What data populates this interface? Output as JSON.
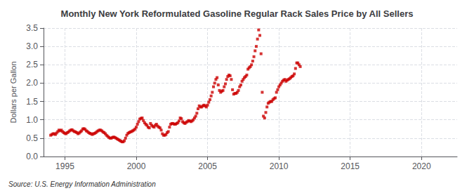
{
  "chart_data": {
    "type": "scatter",
    "title": "Monthly New York Reformulated Gasoline Regular Rack Sales Price by All Sellers",
    "ylabel": "Dollars per Gallon",
    "source": "Source: U.S. Energy Information Administration",
    "color": "#cc0000",
    "marker": "square",
    "grid": true,
    "xlim": [
      1993.5,
      2022.5
    ],
    "ylim": [
      0.0,
      3.5
    ],
    "xticks": [
      1995,
      2000,
      2005,
      2010,
      2015,
      2020
    ],
    "yticks": [
      {
        "value": 0.0,
        "label": "0.0"
      },
      0.5,
      {
        "value": 1.0,
        "label": "1.0"
      },
      1.5,
      {
        "value": 2.0,
        "label": "2.0"
      },
      2.5,
      {
        "value": 3.0,
        "label": "3.0"
      },
      3.5
    ],
    "x": [
      1994.0,
      1994.083,
      1994.167,
      1994.25,
      1994.333,
      1994.417,
      1994.5,
      1994.583,
      1994.667,
      1994.75,
      1994.833,
      1994.917,
      1995.0,
      1995.083,
      1995.167,
      1995.25,
      1995.333,
      1995.417,
      1995.5,
      1995.583,
      1995.667,
      1995.75,
      1995.833,
      1995.917,
      1996.0,
      1996.083,
      1996.167,
      1996.25,
      1996.333,
      1996.417,
      1996.5,
      1996.583,
      1996.667,
      1996.75,
      1996.833,
      1996.917,
      1997.0,
      1997.083,
      1997.167,
      1997.25,
      1997.333,
      1997.417,
      1997.5,
      1997.583,
      1997.667,
      1997.75,
      1997.833,
      1997.917,
      1998.0,
      1998.083,
      1998.167,
      1998.25,
      1998.333,
      1998.417,
      1998.5,
      1998.583,
      1998.667,
      1998.75,
      1998.833,
      1998.917,
      1999.0,
      1999.083,
      1999.167,
      1999.25,
      1999.333,
      1999.417,
      1999.5,
      1999.583,
      1999.667,
      1999.75,
      1999.833,
      1999.917,
      2000.0,
      2000.083,
      2000.167,
      2000.25,
      2000.333,
      2000.417,
      2000.5,
      2000.583,
      2000.667,
      2000.75,
      2000.833,
      2000.917,
      2001.0,
      2001.083,
      2001.167,
      2001.25,
      2001.333,
      2001.417,
      2001.5,
      2001.583,
      2001.667,
      2001.75,
      2001.833,
      2001.917,
      2002.0,
      2002.083,
      2002.167,
      2002.25,
      2002.333,
      2002.417,
      2002.5,
      2002.583,
      2002.667,
      2002.75,
      2002.833,
      2002.917,
      2003.0,
      2003.083,
      2003.167,
      2003.25,
      2003.333,
      2003.417,
      2003.5,
      2003.583,
      2003.667,
      2003.75,
      2003.833,
      2003.917,
      2004.0,
      2004.083,
      2004.167,
      2004.25,
      2004.333,
      2004.417,
      2004.5,
      2004.583,
      2004.667,
      2004.75,
      2004.833,
      2004.917,
      2005.0,
      2005.083,
      2005.167,
      2005.25,
      2005.333,
      2005.417,
      2005.5,
      2005.583,
      2005.667,
      2005.75,
      2005.833,
      2005.917,
      2006.0,
      2006.083,
      2006.167,
      2006.25,
      2006.333,
      2006.417,
      2006.5,
      2006.583,
      2006.667,
      2006.75,
      2006.833,
      2006.917,
      2007.0,
      2007.083,
      2007.167,
      2007.25,
      2007.333,
      2007.417,
      2007.5,
      2007.583,
      2007.667,
      2007.75,
      2007.833,
      2007.917,
      2008.0,
      2008.083,
      2008.167,
      2008.25,
      2008.333,
      2008.417,
      2008.5,
      2008.583,
      2008.667,
      2008.75,
      2008.833,
      2008.917,
      2009.0,
      2009.083,
      2009.167,
      2009.25,
      2009.333,
      2009.417,
      2009.5,
      2009.583,
      2009.667,
      2009.75,
      2009.833,
      2009.917,
      2010.0,
      2010.083,
      2010.167,
      2010.25,
      2010.333,
      2010.417,
      2010.5,
      2010.583,
      2010.667,
      2010.75,
      2010.833,
      2010.917,
      2011.0,
      2011.083,
      2011.167,
      2011.25,
      2011.333,
      2011.417,
      2011.5
    ],
    "values": [
      0.58,
      0.6,
      0.62,
      0.62,
      0.6,
      0.64,
      0.68,
      0.72,
      0.7,
      0.72,
      0.68,
      0.65,
      0.63,
      0.62,
      0.65,
      0.67,
      0.7,
      0.72,
      0.73,
      0.7,
      0.68,
      0.67,
      0.65,
      0.62,
      0.64,
      0.67,
      0.7,
      0.75,
      0.76,
      0.74,
      0.7,
      0.68,
      0.65,
      0.63,
      0.62,
      0.6,
      0.62,
      0.63,
      0.65,
      0.68,
      0.7,
      0.72,
      0.72,
      0.7,
      0.67,
      0.65,
      0.62,
      0.58,
      0.55,
      0.52,
      0.5,
      0.5,
      0.52,
      0.53,
      0.52,
      0.5,
      0.48,
      0.46,
      0.44,
      0.42,
      0.4,
      0.4,
      0.43,
      0.5,
      0.58,
      0.63,
      0.65,
      0.67,
      0.68,
      0.7,
      0.72,
      0.75,
      0.8,
      0.88,
      0.95,
      1.02,
      1.04,
      1.05,
      0.98,
      0.92,
      0.88,
      0.85,
      0.8,
      0.78,
      0.9,
      0.85,
      0.82,
      0.8,
      0.85,
      0.88,
      0.83,
      0.8,
      0.78,
      0.72,
      0.62,
      0.58,
      0.58,
      0.6,
      0.65,
      0.68,
      0.8,
      0.88,
      0.9,
      0.9,
      0.88,
      0.88,
      0.9,
      0.92,
      0.97,
      1.05,
      1.03,
      0.95,
      0.92,
      0.9,
      0.93,
      0.95,
      0.98,
      0.97,
      0.95,
      0.97,
      1.0,
      1.05,
      1.1,
      1.18,
      1.3,
      1.38,
      1.35,
      1.35,
      1.38,
      1.4,
      1.38,
      1.35,
      1.4,
      1.48,
      1.55,
      1.65,
      1.75,
      1.9,
      2.0,
      2.1,
      2.15,
      1.95,
      1.8,
      1.75,
      1.78,
      1.8,
      1.9,
      1.98,
      2.1,
      2.18,
      2.22,
      2.2,
      2.1,
      1.82,
      1.7,
      1.72,
      1.72,
      1.75,
      1.8,
      1.9,
      1.95,
      2.05,
      2.1,
      2.15,
      2.18,
      2.22,
      2.38,
      2.42,
      2.45,
      2.5,
      2.6,
      2.72,
      2.88,
      3.0,
      3.2,
      3.45,
      3.3,
      2.8,
      1.75,
      1.1,
      1.05,
      1.2,
      1.35,
      1.45,
      1.48,
      1.5,
      1.5,
      1.55,
      1.58,
      1.6,
      1.75,
      1.82,
      1.9,
      1.95,
      2.0,
      2.05,
      2.08,
      2.1,
      2.05,
      2.08,
      2.1,
      2.12,
      2.15,
      2.18,
      2.2,
      2.25,
      2.4,
      2.55,
      2.55,
      2.5,
      2.45
    ]
  }
}
